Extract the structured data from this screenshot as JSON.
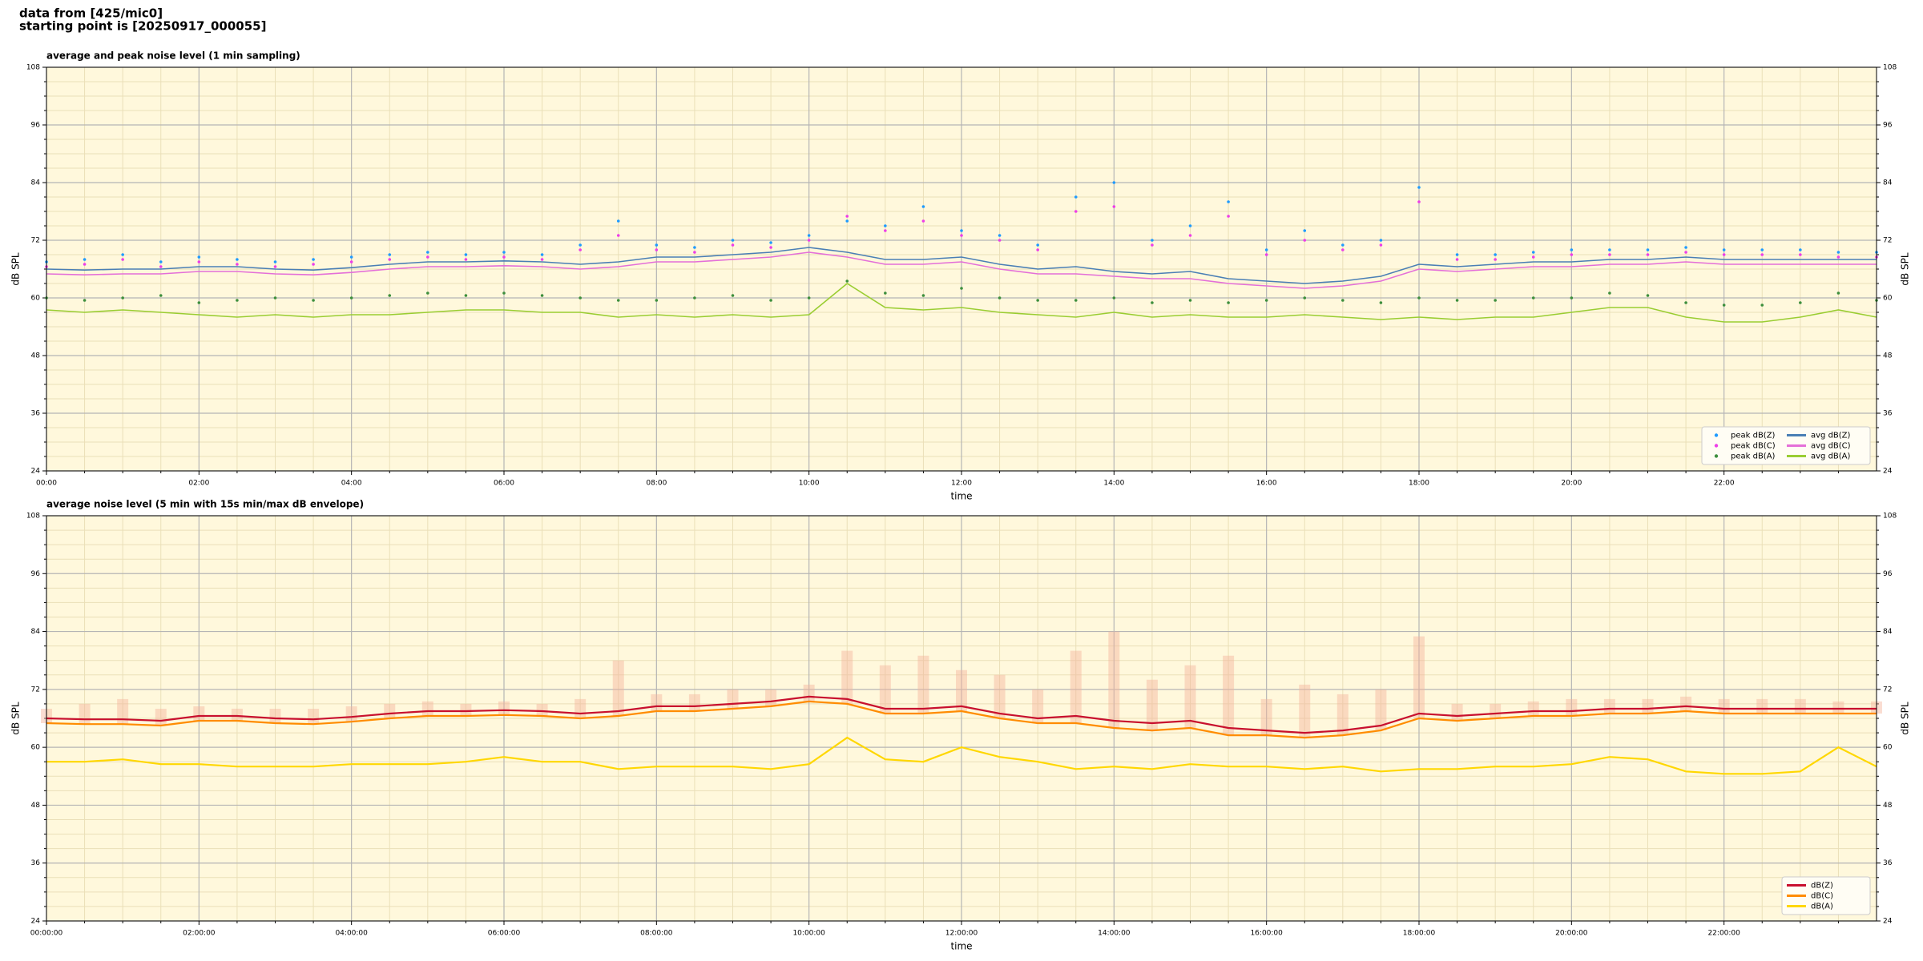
{
  "header": {
    "line1": "data from [425/mic0]",
    "line2": "starting point is [20250917_000055]"
  },
  "chart_data": [
    {
      "type": "line",
      "title": "average and peak noise level (1 min sampling)",
      "xlabel": "time",
      "ylabel": "dB SPL",
      "background": "#fff8dc",
      "grid": true,
      "minor_grid": true,
      "legend": "lower right",
      "legend_columns": 2,
      "xlim": [
        0,
        24
      ],
      "ylim": [
        24,
        108
      ],
      "yticks": [
        24,
        36,
        48,
        60,
        72,
        84,
        96,
        108
      ],
      "xticks": [
        {
          "value": 0,
          "label": "00:00"
        },
        {
          "value": 2,
          "label": "02:00"
        },
        {
          "value": 4,
          "label": "04:00"
        },
        {
          "value": 6,
          "label": "06:00"
        },
        {
          "value": 8,
          "label": "08:00"
        },
        {
          "value": 10,
          "label": "10:00"
        },
        {
          "value": 12,
          "label": "12:00"
        },
        {
          "value": 14,
          "label": "14:00"
        },
        {
          "value": 16,
          "label": "16:00"
        },
        {
          "value": 18,
          "label": "18:00"
        },
        {
          "value": 20,
          "label": "20:00"
        },
        {
          "value": 22,
          "label": "22:00"
        }
      ],
      "x": [
        0,
        0.5,
        1,
        1.5,
        2,
        2.5,
        3,
        3.5,
        4,
        4.5,
        5,
        5.5,
        6,
        6.5,
        7,
        7.5,
        8,
        8.5,
        9,
        9.5,
        10,
        10.5,
        11,
        11.5,
        12,
        12.5,
        13,
        13.5,
        14,
        14.5,
        15,
        15.5,
        16,
        16.5,
        17,
        17.5,
        18,
        18.5,
        19,
        19.5,
        20,
        20.5,
        21,
        21.5,
        22,
        22.5,
        23,
        23.5,
        24
      ],
      "series": [
        {
          "name": "peak dB(Z)",
          "type": "scatter",
          "color": "#1f9bff",
          "values": [
            67.5,
            68,
            69,
            67.5,
            68.5,
            68,
            67.5,
            68,
            68.5,
            69,
            69.5,
            69,
            69.5,
            69,
            71,
            76,
            71,
            70.5,
            72,
            71.5,
            73,
            76,
            75,
            79,
            74,
            73,
            71,
            81,
            84,
            72,
            75,
            80,
            70,
            74,
            71,
            72,
            83,
            69,
            69,
            69.5,
            70,
            70,
            70,
            70.5,
            70,
            70,
            70,
            69.5,
            69.5
          ]
        },
        {
          "name": "peak dB(C)",
          "type": "scatter",
          "color": "#ee3ee8",
          "values": [
            66.5,
            67,
            68,
            66.5,
            67.5,
            67,
            66.5,
            67,
            67.5,
            68,
            68.5,
            68,
            68.5,
            68,
            70,
            73,
            70,
            69.5,
            71,
            70.5,
            72,
            77,
            74,
            76,
            73,
            72,
            70,
            78,
            79,
            71,
            73,
            77,
            69,
            72,
            70,
            71,
            80,
            68,
            68,
            68.5,
            69,
            69,
            69,
            69.5,
            69,
            69,
            69,
            68.5,
            68.5
          ]
        },
        {
          "name": "peak dB(A)",
          "type": "scatter",
          "color": "#3d8f3d",
          "values": [
            60,
            59.5,
            60,
            60.5,
            59,
            59.5,
            60,
            59.5,
            60,
            60.5,
            61,
            60.5,
            61,
            60.5,
            60,
            59.5,
            59.5,
            60,
            60.5,
            59.5,
            60,
            63.5,
            61,
            60.5,
            62,
            60,
            59.5,
            59.5,
            60,
            59,
            59.5,
            59,
            59.5,
            60,
            59.5,
            59,
            60,
            59.5,
            59.5,
            60,
            60,
            61,
            60.5,
            59,
            58.5,
            58.5,
            59,
            61,
            59.5
          ]
        },
        {
          "name": "avg dB(Z)",
          "type": "line",
          "color": "#4a7fb5",
          "values": [
            66,
            65.8,
            66,
            66,
            66.5,
            66.5,
            66,
            65.8,
            66.3,
            67,
            67.5,
            67.5,
            67.7,
            67.5,
            67,
            67.5,
            68.5,
            68.5,
            69,
            69.5,
            70.5,
            69.5,
            68,
            68,
            68.5,
            67,
            66,
            66.5,
            65.5,
            65,
            65.5,
            64,
            63.5,
            63,
            63.5,
            64.5,
            67,
            66.5,
            67,
            67.5,
            67.5,
            68,
            68,
            68.5,
            68,
            68,
            68,
            68,
            68
          ]
        },
        {
          "name": "avg dB(C)",
          "type": "line",
          "color": "#e46fd8",
          "values": [
            65,
            64.8,
            65,
            65,
            65.5,
            65.5,
            65,
            64.8,
            65.3,
            66,
            66.5,
            66.5,
            66.7,
            66.5,
            66,
            66.5,
            67.5,
            67.5,
            68,
            68.5,
            69.5,
            68.5,
            67,
            67,
            67.5,
            66,
            65,
            65,
            64.5,
            64,
            64,
            63,
            62.5,
            62,
            62.5,
            63.5,
            66,
            65.5,
            66,
            66.5,
            66.5,
            67,
            67,
            67.5,
            67,
            67,
            67,
            67,
            67
          ]
        },
        {
          "name": "avg dB(A)",
          "type": "line",
          "color": "#9acd32",
          "values": [
            57.5,
            57,
            57.5,
            57,
            56.5,
            56,
            56.5,
            56,
            56.5,
            56.5,
            57,
            57.5,
            57.5,
            57,
            57,
            56,
            56.5,
            56,
            56.5,
            56,
            56.5,
            63,
            58,
            57.5,
            58,
            57,
            56.5,
            56,
            57,
            56,
            56.5,
            56,
            56,
            56.5,
            56,
            55.5,
            56,
            55.5,
            56,
            56,
            57,
            58,
            58,
            56,
            55,
            55,
            56,
            57.5,
            56
          ]
        }
      ]
    },
    {
      "type": "line",
      "title": "average noise level (5 min with 15s min/max dB envelope)",
      "xlabel": "time",
      "ylabel": "dB SPL",
      "background": "#fff8dc",
      "grid": true,
      "minor_grid": true,
      "legend": "lower right",
      "legend_columns": 1,
      "xlim": [
        0,
        24
      ],
      "ylim": [
        24,
        108
      ],
      "yticks": [
        24,
        36,
        48,
        60,
        72,
        84,
        96,
        108
      ],
      "xticks": [
        {
          "value": 0,
          "label": "00:00:00"
        },
        {
          "value": 2,
          "label": "02:00:00"
        },
        {
          "value": 4,
          "label": "04:00:00"
        },
        {
          "value": 6,
          "label": "06:00:00"
        },
        {
          "value": 8,
          "label": "08:00:00"
        },
        {
          "value": 10,
          "label": "10:00:00"
        },
        {
          "value": 12,
          "label": "12:00:00"
        },
        {
          "value": 14,
          "label": "14:00:00"
        },
        {
          "value": 16,
          "label": "16:00:00"
        },
        {
          "value": 18,
          "label": "18:00:00"
        },
        {
          "value": 20,
          "label": "20:00:00"
        },
        {
          "value": 22,
          "label": "22:00:00"
        }
      ],
      "x": [
        0,
        0.5,
        1,
        1.5,
        2,
        2.5,
        3,
        3.5,
        4,
        4.5,
        5,
        5.5,
        6,
        6.5,
        7,
        7.5,
        8,
        8.5,
        9,
        9.5,
        10,
        10.5,
        11,
        11.5,
        12,
        12.5,
        13,
        13.5,
        14,
        14.5,
        15,
        15.5,
        16,
        16.5,
        17,
        17.5,
        18,
        18.5,
        19,
        19.5,
        20,
        20.5,
        21,
        21.5,
        22,
        22.5,
        23,
        23.5,
        24
      ],
      "envelope": {
        "color": "#f4b39c",
        "values": [
          68,
          69,
          70,
          68,
          68.5,
          68,
          68,
          68,
          68.5,
          69,
          69.5,
          69,
          69.5,
          69,
          70,
          78,
          71,
          71,
          72,
          72,
          73,
          80,
          77,
          79,
          76,
          75,
          72,
          80,
          84,
          74,
          77,
          79,
          70,
          73,
          71,
          72,
          83,
          69,
          69,
          69.5,
          70,
          70,
          70,
          70.5,
          70,
          70,
          70,
          69.5,
          69.5
        ]
      },
      "series": [
        {
          "name": "dB(Z)",
          "type": "line",
          "color": "#c8102e",
          "values": [
            66,
            65.8,
            65.8,
            65.5,
            66.5,
            66.5,
            66,
            65.8,
            66.3,
            67,
            67.5,
            67.5,
            67.7,
            67.5,
            67,
            67.5,
            68.5,
            68.5,
            69,
            69.5,
            70.5,
            70,
            68,
            68,
            68.5,
            67,
            66,
            66.5,
            65.5,
            65,
            65.5,
            64,
            63.5,
            63,
            63.5,
            64.5,
            67,
            66.5,
            67,
            67.5,
            67.5,
            68,
            68,
            68.5,
            68,
            68,
            68,
            68,
            68
          ]
        },
        {
          "name": "dB(C)",
          "type": "line",
          "color": "#ff8c00",
          "values": [
            65,
            64.8,
            64.8,
            64.5,
            65.5,
            65.5,
            65,
            64.8,
            65.3,
            66,
            66.5,
            66.5,
            66.7,
            66.5,
            66,
            66.5,
            67.5,
            67.5,
            68,
            68.5,
            69.5,
            69,
            67,
            67,
            67.5,
            66,
            65,
            65,
            64,
            63.5,
            64,
            62.5,
            62.5,
            62,
            62.5,
            63.5,
            66,
            65.5,
            66,
            66.5,
            66.5,
            67,
            67,
            67.5,
            67,
            67,
            67,
            67,
            67
          ]
        },
        {
          "name": "dB(A)",
          "type": "line",
          "color": "#ffd700",
          "values": [
            57,
            57,
            57.5,
            56.5,
            56.5,
            56,
            56,
            56,
            56.5,
            56.5,
            56.5,
            57,
            58,
            57,
            57,
            55.5,
            56,
            56,
            56,
            55.5,
            56.5,
            62,
            57.5,
            57,
            60,
            58,
            57,
            55.5,
            56,
            55.5,
            56.5,
            56,
            56,
            55.5,
            56,
            55,
            55.5,
            55.5,
            56,
            56,
            56.5,
            58,
            57.5,
            55,
            54.5,
            54.5,
            55,
            60,
            56
          ]
        }
      ]
    }
  ]
}
